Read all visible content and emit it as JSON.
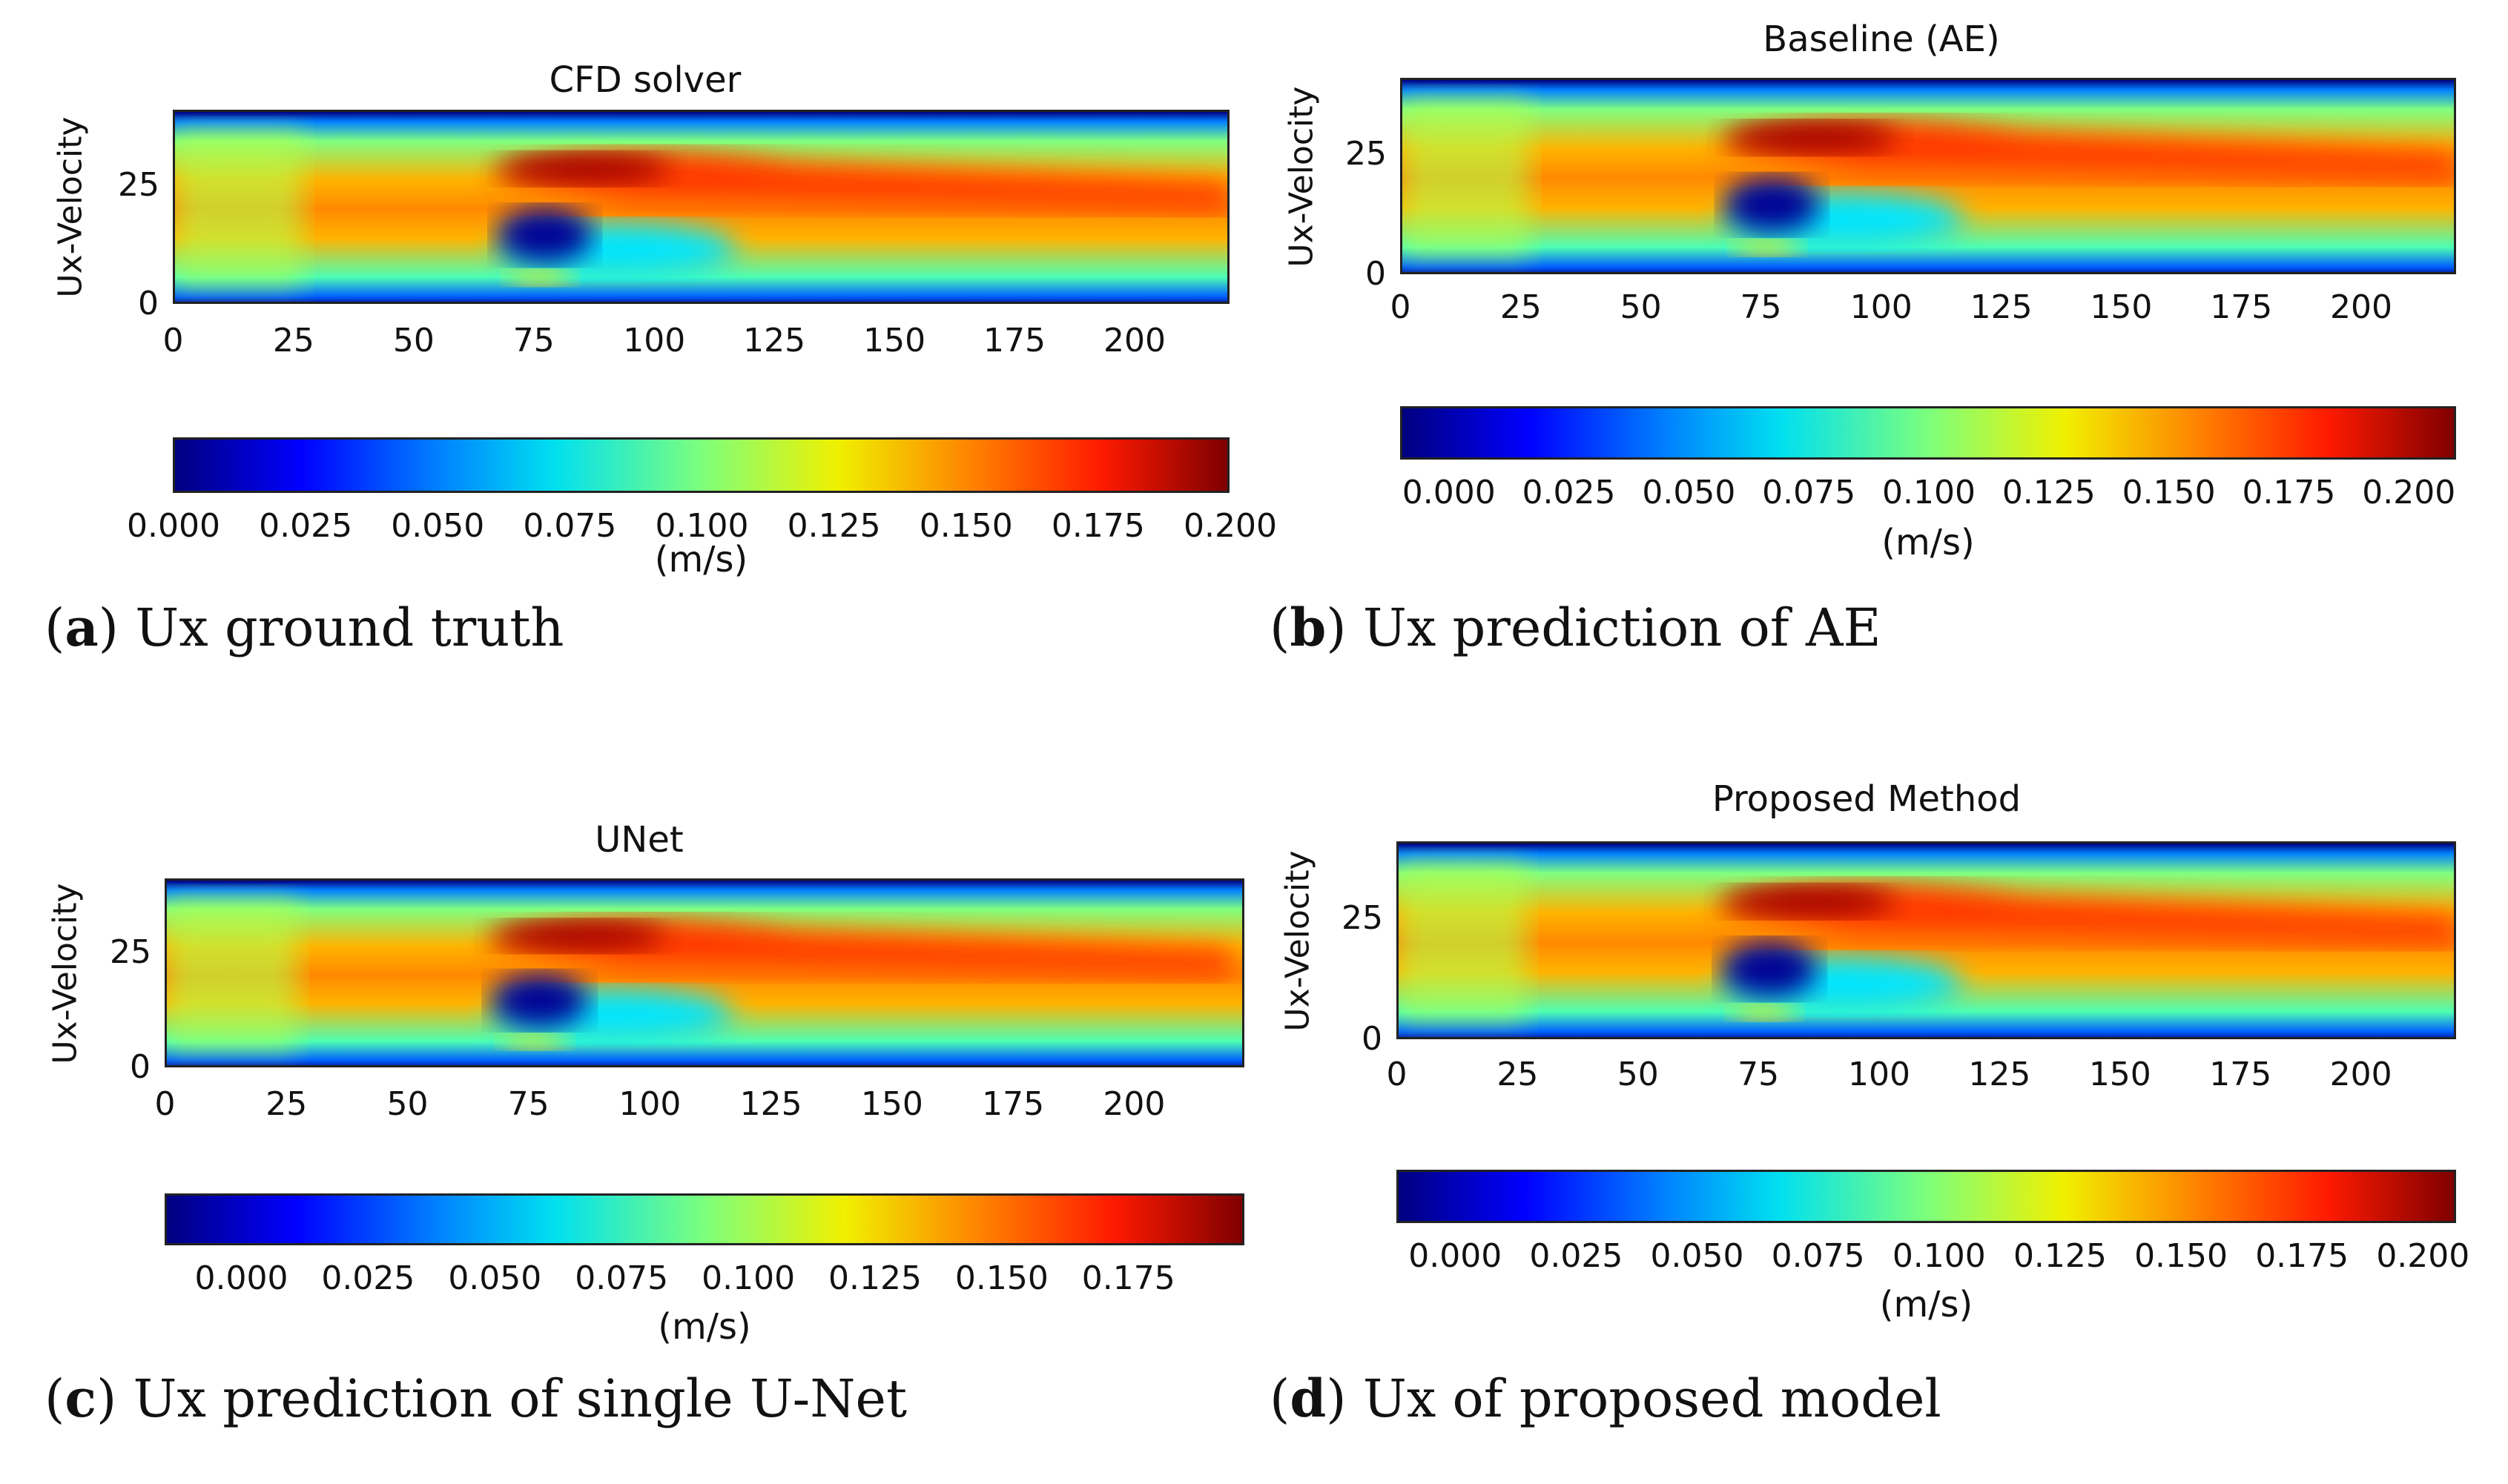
{
  "chart_data": [
    {
      "type": "heatmap",
      "panel": "a",
      "title": "CFD solver",
      "ylabel": "Ux-Velocity",
      "xticks": [
        "0",
        "25",
        "50",
        "75",
        "100",
        "125",
        "150",
        "175",
        "200"
      ],
      "yticks": [
        "0",
        "25"
      ],
      "xlim": [
        0,
        220
      ],
      "ylim": [
        0,
        41
      ],
      "colorbar": {
        "ticks": [
          "0.000",
          "0.025",
          "0.050",
          "0.075",
          "0.100",
          "0.125",
          "0.150",
          "0.175",
          "0.200"
        ],
        "range": [
          0.0,
          0.2
        ],
        "label": "(m/s)"
      },
      "caption_letter": "a",
      "caption_text": " Ux ground truth"
    },
    {
      "type": "heatmap",
      "panel": "b",
      "title": "Baseline (AE)",
      "ylabel": "Ux-Velocity",
      "xticks": [
        "0",
        "25",
        "50",
        "75",
        "100",
        "125",
        "150",
        "175",
        "200"
      ],
      "yticks": [
        "0",
        "25"
      ],
      "xlim": [
        0,
        220
      ],
      "ylim": [
        0,
        41
      ],
      "colorbar": {
        "ticks": [
          "0.000",
          "0.025",
          "0.050",
          "0.075",
          "0.100",
          "0.125",
          "0.150",
          "0.175",
          "0.200"
        ],
        "range": [
          -0.01,
          0.21
        ],
        "label": "(m/s)"
      },
      "caption_letter": "b",
      "caption_text": " Ux prediction of AE"
    },
    {
      "type": "heatmap",
      "panel": "c",
      "title": "UNet",
      "ylabel": "Ux-Velocity",
      "xticks": [
        "0",
        "25",
        "50",
        "75",
        "100",
        "125",
        "150",
        "175",
        "200"
      ],
      "yticks": [
        "0",
        "25"
      ],
      "xlim": [
        0,
        223
      ],
      "ylim": [
        0,
        41
      ],
      "colorbar": {
        "ticks": [
          "0.000",
          "0.025",
          "0.050",
          "0.075",
          "0.100",
          "0.125",
          "0.150",
          "0.175"
        ],
        "range": [
          -0.015,
          0.198
        ],
        "label": "(m/s)"
      },
      "caption_letter": "c",
      "caption_text": " Ux prediction of single U-Net"
    },
    {
      "type": "heatmap",
      "panel": "d",
      "title": "Proposed Method",
      "ylabel": "Ux-Velocity",
      "xticks": [
        "0",
        "25",
        "50",
        "75",
        "100",
        "125",
        "150",
        "175",
        "200"
      ],
      "yticks": [
        "0",
        "25"
      ],
      "xlim": [
        0,
        220
      ],
      "ylim": [
        0,
        41
      ],
      "colorbar": {
        "ticks": [
          "0.000",
          "0.025",
          "0.050",
          "0.075",
          "0.100",
          "0.125",
          "0.150",
          "0.175",
          "0.200"
        ],
        "range": [
          -0.012,
          0.207
        ],
        "label": "(m/s)"
      },
      "caption_letter": "d",
      "caption_text": " Ux of proposed model"
    }
  ]
}
